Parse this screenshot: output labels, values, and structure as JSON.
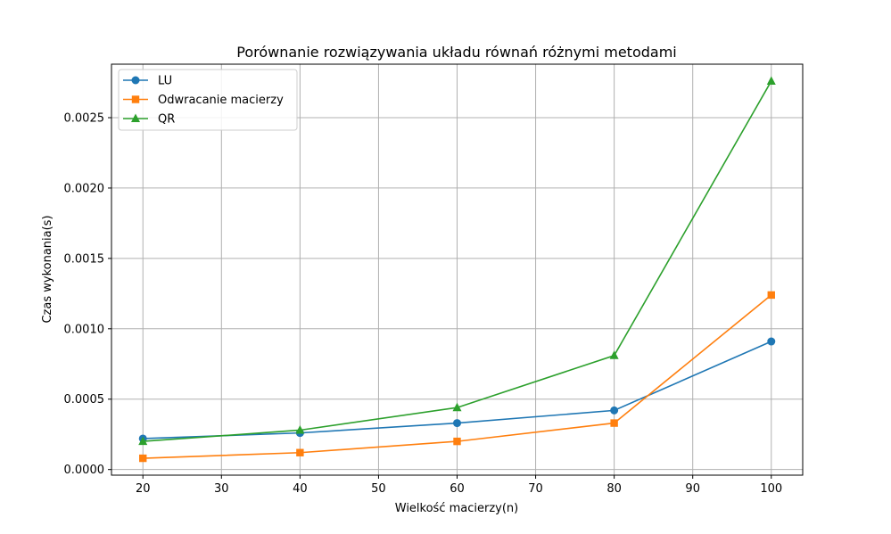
{
  "chart_data": {
    "type": "line",
    "title": "Porównanie rozwiązywania układu równań różnymi metodami",
    "xlabel": "Wielkość macierzy(n)",
    "ylabel": "Czas wykonania(s)",
    "xlim": [
      16,
      104
    ],
    "ylim": [
      -4e-05,
      0.00288
    ],
    "xticks": [
      20,
      30,
      40,
      50,
      60,
      70,
      80,
      90,
      100
    ],
    "xtick_labels": [
      "20",
      "30",
      "40",
      "50",
      "60",
      "70",
      "80",
      "90",
      "100"
    ],
    "yticks": [
      0.0,
      0.0005,
      0.001,
      0.0015,
      0.002,
      0.0025
    ],
    "ytick_labels": [
      "0.0000",
      "0.0005",
      "0.0010",
      "0.0015",
      "0.0020",
      "0.0025"
    ],
    "grid": true,
    "legend_position": "top-left",
    "x": [
      20,
      40,
      60,
      80,
      100
    ],
    "series": [
      {
        "name": "LU",
        "color": "#1f77b4",
        "marker": "circle",
        "values": [
          0.00022,
          0.00026,
          0.00033,
          0.00042,
          0.00091
        ]
      },
      {
        "name": "Odwracanie macierzy",
        "color": "#ff7f0e",
        "marker": "square",
        "values": [
          8e-05,
          0.00012,
          0.0002,
          0.00033,
          0.00124
        ]
      },
      {
        "name": "QR",
        "color": "#2ca02c",
        "marker": "triangle",
        "values": [
          0.0002,
          0.00028,
          0.00044,
          0.00081,
          0.00276
        ]
      }
    ]
  }
}
